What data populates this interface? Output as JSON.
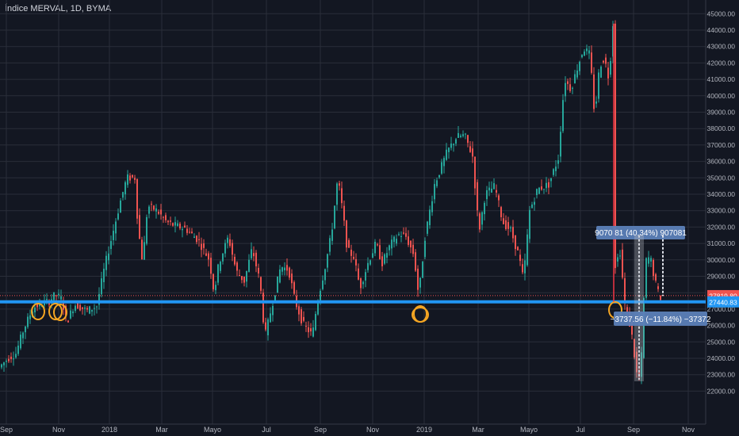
{
  "header": {
    "title": "Índice MERVAL, 1D, BYMA"
  },
  "chart_data": {
    "type": "candlestick",
    "title": "Índice MERVAL, 1D, BYMA",
    "yaxis_ticks": [
      22000,
      23000,
      24000,
      25000,
      26000,
      27000,
      28000,
      29000,
      30000,
      31000,
      32000,
      33000,
      34000,
      35000,
      36000,
      37000,
      38000,
      39000,
      40000,
      41000,
      42000,
      43000,
      44000,
      45000
    ],
    "ylim": [
      21400,
      45600
    ],
    "xaxis_ticks": [
      {
        "label": "Sep",
        "x": 8
      },
      {
        "label": "Nov",
        "x": 74
      },
      {
        "label": "2018",
        "x": 138
      },
      {
        "label": "Mar",
        "x": 204
      },
      {
        "label": "Mayo",
        "x": 268
      },
      {
        "label": "Jul",
        "x": 336
      },
      {
        "label": "Sep",
        "x": 404
      },
      {
        "label": "Nov",
        "x": 470
      },
      {
        "label": "2019",
        "x": 535
      },
      {
        "label": "Mar",
        "x": 603
      },
      {
        "label": "Mayo",
        "x": 667
      },
      {
        "label": "Jul",
        "x": 732
      },
      {
        "label": "Sep",
        "x": 799
      },
      {
        "label": "Nov",
        "x": 868
      }
    ],
    "trend_path": [
      [
        0,
        23400
      ],
      [
        12,
        24000
      ],
      [
        22,
        24300
      ],
      [
        32,
        25800
      ],
      [
        44,
        27100
      ],
      [
        54,
        27300
      ],
      [
        64,
        27500
      ],
      [
        72,
        27900
      ],
      [
        80,
        27600
      ],
      [
        86,
        26200
      ],
      [
        96,
        27300
      ],
      [
        112,
        26900
      ],
      [
        124,
        27200
      ],
      [
        134,
        29600
      ],
      [
        144,
        31600
      ],
      [
        154,
        33600
      ],
      [
        162,
        35000
      ],
      [
        172,
        35000
      ],
      [
        176,
        32000
      ],
      [
        182,
        29800
      ],
      [
        188,
        33300
      ],
      [
        200,
        33000
      ],
      [
        212,
        32300
      ],
      [
        222,
        32100
      ],
      [
        236,
        31900
      ],
      [
        252,
        31200
      ],
      [
        266,
        30000
      ],
      [
        272,
        28000
      ],
      [
        278,
        29800
      ],
      [
        290,
        31400
      ],
      [
        300,
        29300
      ],
      [
        310,
        28700
      ],
      [
        320,
        30700
      ],
      [
        330,
        28600
      ],
      [
        336,
        25300
      ],
      [
        344,
        27000
      ],
      [
        356,
        29600
      ],
      [
        366,
        29400
      ],
      [
        374,
        27500
      ],
      [
        384,
        26100
      ],
      [
        396,
        25400
      ],
      [
        402,
        27400
      ],
      [
        412,
        29600
      ],
      [
        420,
        31600
      ],
      [
        428,
        35000
      ],
      [
        434,
        33000
      ],
      [
        440,
        30600
      ],
      [
        448,
        30200
      ],
      [
        456,
        28300
      ],
      [
        466,
        29800
      ],
      [
        476,
        31000
      ],
      [
        484,
        29800
      ],
      [
        494,
        30900
      ],
      [
        506,
        31600
      ],
      [
        514,
        31400
      ],
      [
        524,
        30300
      ],
      [
        530,
        27800
      ],
      [
        538,
        31400
      ],
      [
        550,
        34600
      ],
      [
        566,
        36600
      ],
      [
        578,
        37500
      ],
      [
        588,
        37600
      ],
      [
        598,
        36300
      ],
      [
        606,
        31700
      ],
      [
        614,
        34000
      ],
      [
        626,
        34500
      ],
      [
        636,
        32300
      ],
      [
        646,
        31800
      ],
      [
        656,
        30300
      ],
      [
        662,
        28800
      ],
      [
        670,
        33000
      ],
      [
        680,
        34300
      ],
      [
        694,
        34600
      ],
      [
        706,
        36200
      ],
      [
        714,
        41000
      ],
      [
        722,
        40400
      ],
      [
        730,
        41700
      ],
      [
        738,
        42900
      ],
      [
        746,
        42500
      ],
      [
        752,
        38700
      ],
      [
        758,
        41800
      ],
      [
        764,
        42300
      ],
      [
        770,
        41000
      ],
      [
        775,
        44400
      ],
      [
        778,
        29700
      ],
      [
        784,
        30500
      ],
      [
        790,
        27300
      ],
      [
        798,
        25700
      ],
      [
        806,
        22700
      ],
      [
        810,
        23000
      ],
      [
        816,
        29900
      ],
      [
        822,
        30200
      ],
      [
        828,
        28700
      ],
      [
        834,
        27700
      ]
    ],
    "price_label": {
      "text": "27819.80",
      "value": 27819.8,
      "color": "#ef5350"
    },
    "hline_label": {
      "text": "27440.83",
      "value": 27440.83,
      "color": "#2196f3"
    },
    "measure_up": {
      "text": "9070 81 (40.34%) 907081"
    },
    "measure_down": {
      "text": "−3737.56 (−11.84%) −37372"
    },
    "colors": {
      "up": "#26a69a",
      "down": "#ef5350",
      "hline": "#2196f3",
      "circle": "#f5a623",
      "bg": "#131722",
      "grid": "#2a2e39"
    }
  }
}
